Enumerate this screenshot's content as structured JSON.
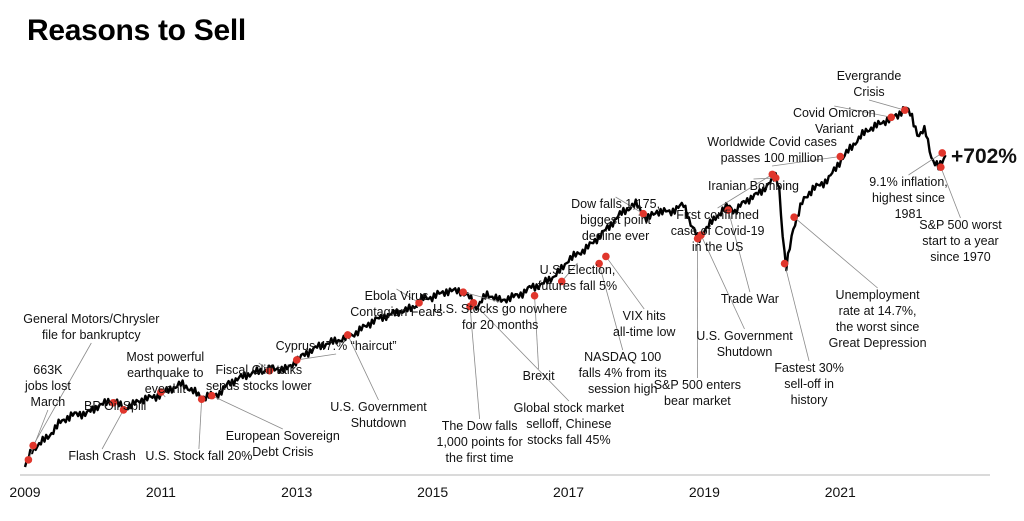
{
  "title": "Reasons to Sell",
  "chart_data": {
    "type": "line",
    "title": "Reasons to Sell",
    "xlabel": "",
    "ylabel": "",
    "xlim": [
      2009.0,
      2022.6
    ],
    "ylim": [
      0,
      102
    ],
    "x_tick_labels": [
      "2009",
      "2011",
      "2013",
      "2015",
      "2017",
      "2019",
      "2021"
    ],
    "x_ticks": [
      2009,
      2011,
      2013,
      2015,
      2017,
      2019,
      2021
    ],
    "grid": false,
    "total_return_label": "+702%",
    "line_color": "#000000",
    "marker_color": "#e0362c",
    "series": [
      {
        "x": [
          2009.0,
          2009.1,
          2009.2,
          2009.35,
          2009.5,
          2009.7,
          2009.9,
          2010.1,
          2010.3,
          2010.45,
          2010.6,
          2010.75,
          2010.9,
          2011.1,
          2011.3,
          2011.45,
          2011.6,
          2011.7,
          2011.85,
          2012.0,
          2012.2,
          2012.4,
          2012.55,
          2012.7,
          2012.85,
          2013.0,
          2013.2,
          2013.4,
          2013.6,
          2013.75,
          2013.9,
          2014.1,
          2014.3,
          2014.5,
          2014.7,
          2014.85,
          2015.0,
          2015.2,
          2015.4,
          2015.55,
          2015.65,
          2015.8,
          2016.0,
          2016.1,
          2016.3,
          2016.45,
          2016.6,
          2016.8,
          2016.9,
          2017.0,
          2017.2,
          2017.4,
          2017.6,
          2017.8,
          2018.0,
          2018.08,
          2018.15,
          2018.3,
          2018.5,
          2018.7,
          2018.8,
          2018.92,
          2019.0,
          2019.2,
          2019.35,
          2019.45,
          2019.6,
          2019.8,
          2019.95,
          2020.05,
          2020.1,
          2020.13,
          2020.2,
          2020.3,
          2020.45,
          2020.6,
          2020.75,
          2020.85,
          2021.0,
          2021.2,
          2021.4,
          2021.55,
          2021.7,
          2021.85,
          2021.95,
          2022.05,
          2022.15,
          2022.25,
          2022.35,
          2022.45,
          2022.55
        ],
        "y": [
          0,
          5,
          7,
          9,
          12,
          14,
          15,
          18,
          19,
          16,
          17,
          19,
          20,
          22,
          23,
          21,
          19,
          20,
          21,
          24,
          25,
          26,
          27,
          28,
          28,
          30,
          32,
          34,
          36,
          37,
          38,
          40,
          42,
          44,
          45,
          47,
          47,
          49,
          50,
          48,
          45,
          48,
          46,
          47,
          49,
          51,
          51,
          53,
          55,
          58,
          61,
          64,
          67,
          71,
          74,
          72,
          70,
          72,
          71,
          73,
          68,
          64,
          67,
          71,
          73,
          71,
          74,
          77,
          80,
          82,
          79,
          70,
          55,
          66,
          74,
          78,
          80,
          82,
          86,
          90,
          94,
          96,
          98,
          99,
          101,
          98,
          92,
          94,
          86,
          84,
          88
        ]
      }
    ],
    "annotations": [
      {
        "text": [
          "663K",
          "jobs lost",
          "March"
        ],
        "x": 2009.05,
        "y": 2
      },
      {
        "text": [
          "General Motors/Chrysler",
          "file for bankruptcy"
        ],
        "x": 2009.12,
        "y": 6
      },
      {
        "text": [
          "BP Oil Spill"
        ],
        "x": 2010.3,
        "y": 18
      },
      {
        "text": [
          "Flash Crash"
        ],
        "x": 2010.45,
        "y": 16
      },
      {
        "text": [
          "Most powerful",
          "earthquake to",
          "ever hit"
        ],
        "x": 2011.0,
        "y": 21
      },
      {
        "text": [
          "U.S. Stock fall 20%"
        ],
        "x": 2011.6,
        "y": 19
      },
      {
        "text": [
          "European Sovereign",
          "Debt Crisis"
        ],
        "x": 2011.75,
        "y": 20
      },
      {
        "text": [
          "Fiscal Cliff talks",
          "sends stocks lower"
        ],
        "x": 2012.6,
        "y": 27
      },
      {
        "text": [
          "Cyprus 47.% “haircut”"
        ],
        "x": 2013.0,
        "y": 30
      },
      {
        "text": [
          "U.S. Government",
          "Shutdown"
        ],
        "x": 2013.75,
        "y": 37
      },
      {
        "text": [
          "Ebola Virus",
          "Contagion Fears"
        ],
        "x": 2014.8,
        "y": 46
      },
      {
        "text": [
          "U.S. Stocks go nowhere",
          "for 20 months"
        ],
        "x": 2015.45,
        "y": 49
      },
      {
        "text": [
          "The Dow falls",
          "1,000 points for",
          "the first time"
        ],
        "x": 2015.55,
        "y": 45
      },
      {
        "text": [
          "Global stock market",
          "selloff, Chinese",
          "stocks fall 45%"
        ],
        "x": 2015.6,
        "y": 46
      },
      {
        "text": [
          "Brexit"
        ],
        "x": 2016.5,
        "y": 48
      },
      {
        "text": [
          "U.S. Election,",
          "futures fall 5%"
        ],
        "x": 2016.9,
        "y": 52
      },
      {
        "text": [
          "NASDAQ 100",
          "falls 4% from its",
          "session high"
        ],
        "x": 2017.45,
        "y": 57
      },
      {
        "text": [
          "VIX hits",
          "all-time low"
        ],
        "x": 2017.55,
        "y": 59
      },
      {
        "text": [
          "Dow falls 1,175,",
          "biggest point",
          "decline ever"
        ],
        "x": 2018.1,
        "y": 71
      },
      {
        "text": [
          "S&P 500 enters",
          "bear market"
        ],
        "x": 2018.9,
        "y": 64
      },
      {
        "text": [
          "U.S. Government",
          "Shutdown"
        ],
        "x": 2018.95,
        "y": 65
      },
      {
        "text": [
          "Trade War"
        ],
        "x": 2019.35,
        "y": 72
      },
      {
        "text": [
          "First confirmed",
          "case of Covid-19",
          "in the US"
        ],
        "x": 2020.0,
        "y": 82
      },
      {
        "text": [
          "Iranian Bombing"
        ],
        "x": 2020.05,
        "y": 81
      },
      {
        "text": [
          "Fastest 30%",
          "sell-off in",
          "history"
        ],
        "x": 2020.18,
        "y": 57
      },
      {
        "text": [
          "Unemployment",
          "rate at 14.7%,",
          "the worst since",
          "Great Depression"
        ],
        "x": 2020.32,
        "y": 70
      },
      {
        "text": [
          "Worldwide Covid cases",
          "passes 100 million"
        ],
        "x": 2021.0,
        "y": 87
      },
      {
        "text": [
          "Covid Omicron",
          "Variant"
        ],
        "x": 2021.75,
        "y": 98
      },
      {
        "text": [
          "Evergrande",
          "Crisis"
        ],
        "x": 2021.95,
        "y": 100
      },
      {
        "text": [
          "9.1% inflation,",
          "highest since",
          "1981"
        ],
        "x": 2022.5,
        "y": 88
      },
      {
        "text": [
          "S&P 500 worst",
          "start to a year",
          "since 1970"
        ],
        "x": 2022.48,
        "y": 84
      }
    ]
  }
}
